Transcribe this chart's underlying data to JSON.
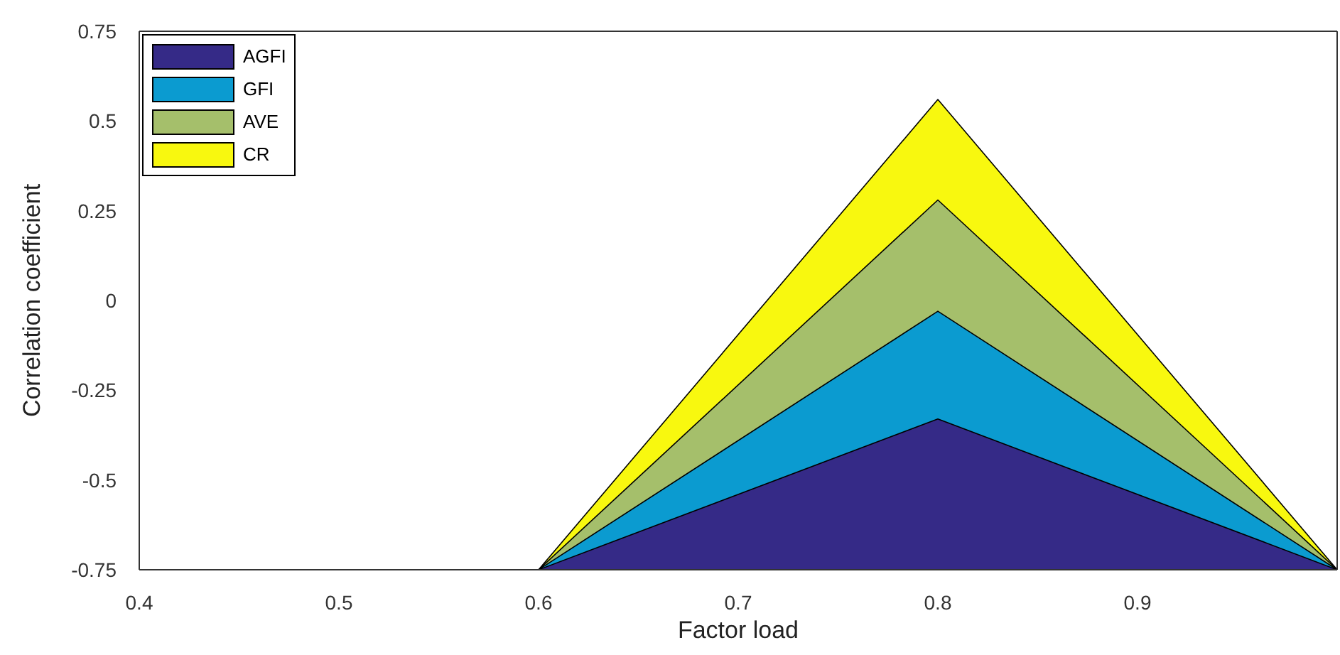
{
  "chart_data": {
    "type": "area",
    "xlabel": "Factor load",
    "ylabel": "Correlation coefficient",
    "x": [
      0.4,
      0.5,
      0.6,
      0.8,
      1.0
    ],
    "series": [
      {
        "name": "AGFI",
        "color": "#352a87",
        "values": [
          -0.75,
          -0.75,
          -0.75,
          -0.33,
          -0.75
        ]
      },
      {
        "name": "GFI",
        "color": "#0b9bd0",
        "values": [
          -0.75,
          -0.75,
          -0.75,
          -0.03,
          -0.75
        ]
      },
      {
        "name": "AVE",
        "color": "#a5bf6b",
        "values": [
          -0.75,
          -0.75,
          -0.75,
          0.28,
          -0.75
        ]
      },
      {
        "name": "CR",
        "color": "#f8f80f",
        "values": [
          -0.75,
          -0.75,
          -0.75,
          0.56,
          -0.75
        ]
      }
    ],
    "xlim": [
      0.4,
      1.0
    ],
    "xticks": [
      0.4,
      0.5,
      0.6,
      0.7,
      0.8,
      0.9
    ],
    "ylim": [
      -0.75,
      0.75
    ],
    "yticks": [
      -0.75,
      -0.5,
      -0.25,
      0,
      0.25,
      0.5,
      0.75
    ],
    "grid": false,
    "legend": "top left"
  }
}
